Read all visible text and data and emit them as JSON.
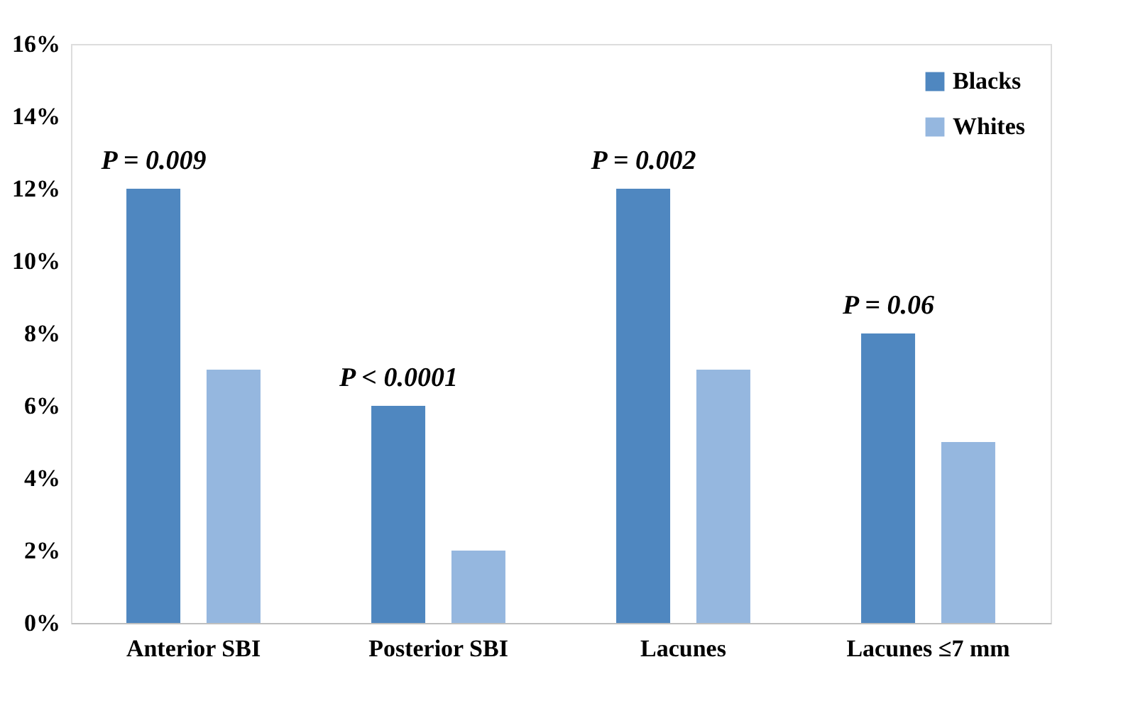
{
  "chart_data": {
    "type": "bar",
    "categories": [
      "Anterior SBI",
      "Posterior SBI",
      "Lacunes",
      "Lacunes ≤7 mm"
    ],
    "series": [
      {
        "name": "Blacks",
        "color": "#4f87c0",
        "values": [
          12,
          6,
          12,
          8
        ]
      },
      {
        "name": "Whites",
        "color": "#95b7df",
        "values": [
          7,
          2,
          7,
          5
        ]
      }
    ],
    "ylim": [
      0,
      16
    ],
    "yticks": [
      {
        "value": 0,
        "label": "0%"
      },
      {
        "value": 2,
        "label": "2%"
      },
      {
        "value": 4,
        "label": "4%"
      },
      {
        "value": 6,
        "label": "6%"
      },
      {
        "value": 8,
        "label": "8%"
      },
      {
        "value": 10,
        "label": "10%"
      },
      {
        "value": 12,
        "label": "12%"
      },
      {
        "value": 14,
        "label": "14%"
      },
      {
        "value": 16,
        "label": "16%"
      }
    ],
    "annotations": [
      "P = 0.009",
      "P < 0.0001",
      "P = 0.002",
      "P = 0.06"
    ],
    "legend": "top right",
    "grid": false
  }
}
